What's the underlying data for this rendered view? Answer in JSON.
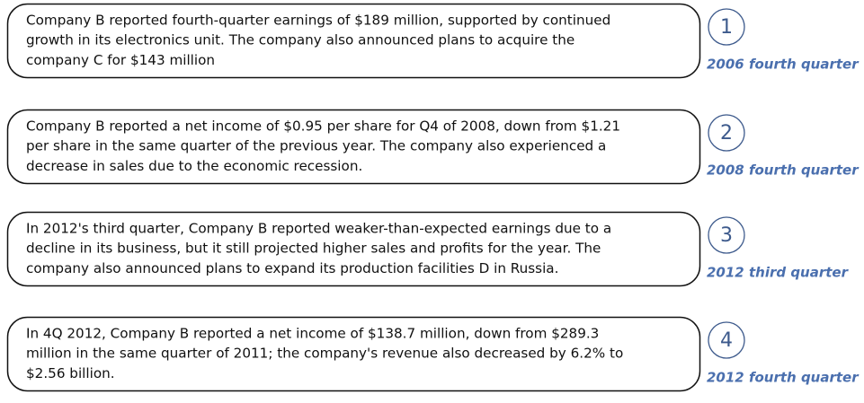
{
  "items": [
    {
      "number": 1,
      "lines": [
        "Company B reported fourth-quarter earnings of $189 million, supported by continued",
        "growth in its electronics unit. The company also announced plans to acquire the",
        "company C for $143 million"
      ],
      "label": "2006 fourth quarter"
    },
    {
      "number": 2,
      "lines": [
        "Company B reported a net income of $0.95 per share for Q4 of 2008, down from $1.21",
        "per share in the same quarter of the previous year. The company also experienced a",
        "decrease in sales due to the economic recession."
      ],
      "label": "2008 fourth quarter"
    },
    {
      "number": 3,
      "lines": [
        "In 2012's third quarter, Company B reported weaker-than-expected earnings due to a",
        "decline in its business, but it still projected higher sales and profits for the year. The",
        "company also announced plans to expand its production facilities D in Russia."
      ],
      "label": "2012 third quarter"
    },
    {
      "number": 4,
      "lines": [
        "In 4Q 2012, Company B reported a net income of $138.7 million, down from $289.3",
        "million in the same quarter of 2011; the company's revenue also decreased by 6.2% to",
        "$2.56 billion."
      ],
      "label": "2012 fourth quarter"
    }
  ]
}
